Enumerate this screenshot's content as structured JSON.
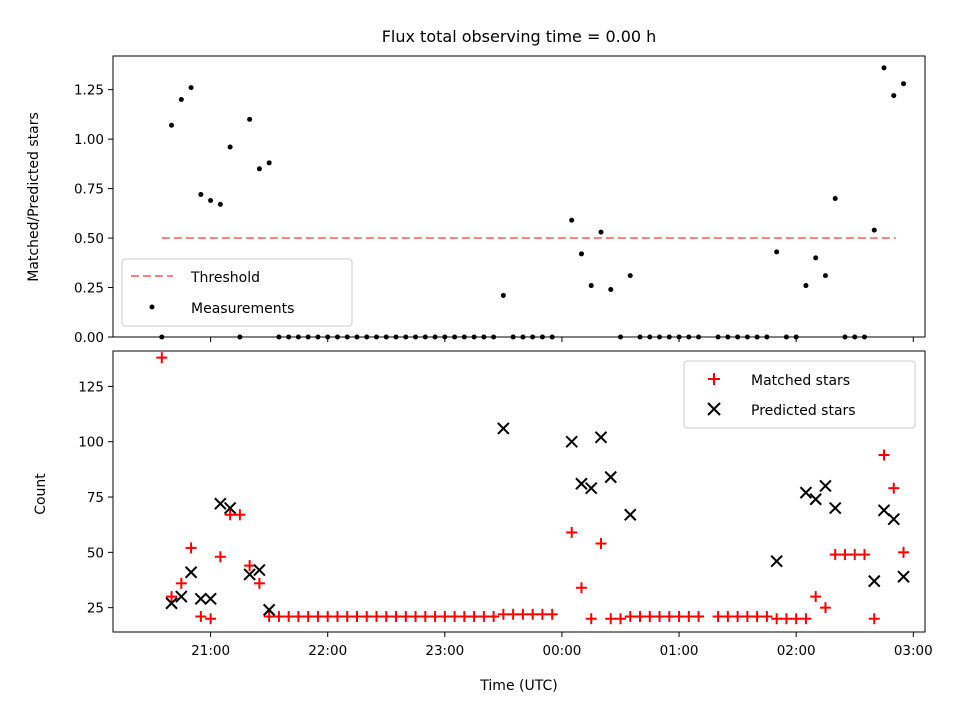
{
  "chart_data": {
    "title": "Flux total observing time = 0.00 h",
    "xlabel": "Time (UTC)",
    "x_ticks": [
      "21:00",
      "22:00",
      "23:00",
      "00:00",
      "01:00",
      "02:00",
      "03:00"
    ],
    "panels": [
      {
        "type": "scatter",
        "ylabel": "Matched/Predicted stars",
        "ylim": [
          0,
          1.42
        ],
        "y_ticks": [
          "0.00",
          "0.25",
          "0.50",
          "0.75",
          "1.00",
          "1.25"
        ],
        "legend_position": "lower-left",
        "threshold": {
          "name": "Threshold",
          "value": 0.5,
          "x_start": "20:35",
          "x_end": "02:51",
          "color": "#ff8080"
        },
        "series": [
          {
            "name": "Measurements",
            "color": "#000000",
            "points": [
              [
                "20:35",
                0
              ],
              [
                "20:40",
                1.07
              ],
              [
                "20:45",
                1.2
              ],
              [
                "20:50",
                1.26
              ],
              [
                "20:55",
                0.72
              ],
              [
                "21:00",
                0.69
              ],
              [
                "21:05",
                0.67
              ],
              [
                "21:10",
                0.96
              ],
              [
                "21:15",
                0
              ],
              [
                "21:20",
                1.1
              ],
              [
                "21:25",
                0.85
              ],
              [
                "21:30",
                0.88
              ],
              [
                "21:35",
                0
              ],
              [
                "21:40",
                0
              ],
              [
                "21:45",
                0
              ],
              [
                "21:50",
                0
              ],
              [
                "21:55",
                0
              ],
              [
                "22:00",
                0
              ],
              [
                "22:05",
                0
              ],
              [
                "22:10",
                0
              ],
              [
                "22:15",
                0
              ],
              [
                "22:20",
                0
              ],
              [
                "22:25",
                0
              ],
              [
                "22:30",
                0
              ],
              [
                "22:35",
                0
              ],
              [
                "22:40",
                0
              ],
              [
                "22:45",
                0
              ],
              [
                "22:50",
                0
              ],
              [
                "22:55",
                0
              ],
              [
                "23:00",
                0
              ],
              [
                "23:05",
                0
              ],
              [
                "23:10",
                0
              ],
              [
                "23:15",
                0
              ],
              [
                "23:20",
                0
              ],
              [
                "23:25",
                0
              ],
              [
                "23:30",
                0.21
              ],
              [
                "23:35",
                0
              ],
              [
                "23:40",
                0
              ],
              [
                "23:45",
                0
              ],
              [
                "23:50",
                0
              ],
              [
                "23:55",
                0
              ],
              [
                "00:05",
                0.59
              ],
              [
                "00:10",
                0.42
              ],
              [
                "00:15",
                0.26
              ],
              [
                "00:20",
                0.53
              ],
              [
                "00:25",
                0.24
              ],
              [
                "00:30",
                0
              ],
              [
                "00:35",
                0.31
              ],
              [
                "00:40",
                0
              ],
              [
                "00:45",
                0
              ],
              [
                "00:50",
                0
              ],
              [
                "00:55",
                0
              ],
              [
                "01:00",
                0
              ],
              [
                "01:05",
                0
              ],
              [
                "01:10",
                0
              ],
              [
                "01:20",
                0
              ],
              [
                "01:25",
                0
              ],
              [
                "01:30",
                0
              ],
              [
                "01:35",
                0
              ],
              [
                "01:40",
                0
              ],
              [
                "01:45",
                0
              ],
              [
                "01:50",
                0.43
              ],
              [
                "01:55",
                0
              ],
              [
                "02:00",
                0
              ],
              [
                "02:05",
                0.26
              ],
              [
                "02:10",
                0.4
              ],
              [
                "02:15",
                0.31
              ],
              [
                "02:20",
                0.7
              ],
              [
                "02:25",
                0
              ],
              [
                "02:30",
                0
              ],
              [
                "02:35",
                0
              ],
              [
                "02:40",
                0.54
              ],
              [
                "02:45",
                1.36
              ],
              [
                "02:50",
                1.22
              ],
              [
                "02:55",
                1.28
              ]
            ]
          }
        ]
      },
      {
        "type": "scatter",
        "ylabel": "Count",
        "ylim": [
          14,
          141
        ],
        "y_ticks": [
          "25",
          "50",
          "75",
          "100",
          "125"
        ],
        "legend_position": "upper-right",
        "series": [
          {
            "name": "Matched stars",
            "marker": "plus",
            "color": "#ff0000",
            "points": [
              [
                "20:35",
                138
              ],
              [
                "20:40",
                30
              ],
              [
                "20:45",
                36
              ],
              [
                "20:50",
                52
              ],
              [
                "20:55",
                21
              ],
              [
                "21:00",
                20
              ],
              [
                "21:05",
                48
              ],
              [
                "21:10",
                67
              ],
              [
                "21:15",
                67
              ],
              [
                "21:20",
                44
              ],
              [
                "21:25",
                36
              ],
              [
                "21:30",
                21
              ],
              [
                "21:35",
                21
              ],
              [
                "21:40",
                21
              ],
              [
                "21:45",
                21
              ],
              [
                "21:50",
                21
              ],
              [
                "21:55",
                21
              ],
              [
                "22:00",
                21
              ],
              [
                "22:05",
                21
              ],
              [
                "22:10",
                21
              ],
              [
                "22:15",
                21
              ],
              [
                "22:20",
                21
              ],
              [
                "22:25",
                21
              ],
              [
                "22:30",
                21
              ],
              [
                "22:35",
                21
              ],
              [
                "22:40",
                21
              ],
              [
                "22:45",
                21
              ],
              [
                "22:50",
                21
              ],
              [
                "22:55",
                21
              ],
              [
                "23:00",
                21
              ],
              [
                "23:05",
                21
              ],
              [
                "23:10",
                21
              ],
              [
                "23:15",
                21
              ],
              [
                "23:20",
                21
              ],
              [
                "23:25",
                21
              ],
              [
                "23:30",
                22
              ],
              [
                "23:35",
                22
              ],
              [
                "23:40",
                22
              ],
              [
                "23:45",
                22
              ],
              [
                "23:50",
                22
              ],
              [
                "23:55",
                22
              ],
              [
                "00:05",
                59
              ],
              [
                "00:10",
                34
              ],
              [
                "00:15",
                20
              ],
              [
                "00:20",
                54
              ],
              [
                "00:25",
                20
              ],
              [
                "00:30",
                20
              ],
              [
                "00:35",
                21
              ],
              [
                "00:40",
                21
              ],
              [
                "00:45",
                21
              ],
              [
                "00:50",
                21
              ],
              [
                "00:55",
                21
              ],
              [
                "01:00",
                21
              ],
              [
                "01:05",
                21
              ],
              [
                "01:10",
                21
              ],
              [
                "01:20",
                21
              ],
              [
                "01:25",
                21
              ],
              [
                "01:30",
                21
              ],
              [
                "01:35",
                21
              ],
              [
                "01:40",
                21
              ],
              [
                "01:45",
                21
              ],
              [
                "01:50",
                20
              ],
              [
                "01:55",
                20
              ],
              [
                "02:00",
                20
              ],
              [
                "02:05",
                20
              ],
              [
                "02:10",
                30
              ],
              [
                "02:15",
                25
              ],
              [
                "02:20",
                49
              ],
              [
                "02:25",
                49
              ],
              [
                "02:30",
                49
              ],
              [
                "02:35",
                49
              ],
              [
                "02:40",
                20
              ],
              [
                "02:45",
                94
              ],
              [
                "02:50",
                79
              ],
              [
                "02:55",
                50
              ]
            ]
          },
          {
            "name": "Predicted stars",
            "marker": "x",
            "color": "#000000",
            "points": [
              [
                "20:40",
                27
              ],
              [
                "20:45",
                30
              ],
              [
                "20:50",
                41
              ],
              [
                "20:55",
                29
              ],
              [
                "21:00",
                29
              ],
              [
                "21:05",
                72
              ],
              [
                "21:10",
                70
              ],
              [
                "21:20",
                40
              ],
              [
                "21:25",
                42
              ],
              [
                "21:30",
                24
              ],
              [
                "23:30",
                106
              ],
              [
                "00:05",
                100
              ],
              [
                "00:10",
                81
              ],
              [
                "00:15",
                79
              ],
              [
                "00:20",
                102
              ],
              [
                "00:25",
                84
              ],
              [
                "00:35",
                67
              ],
              [
                "01:50",
                46
              ],
              [
                "02:05",
                77
              ],
              [
                "02:10",
                74
              ],
              [
                "02:15",
                80
              ],
              [
                "02:20",
                70
              ],
              [
                "02:40",
                37
              ],
              [
                "02:45",
                69
              ],
              [
                "02:50",
                65
              ],
              [
                "02:55",
                39
              ]
            ]
          }
        ]
      }
    ]
  }
}
